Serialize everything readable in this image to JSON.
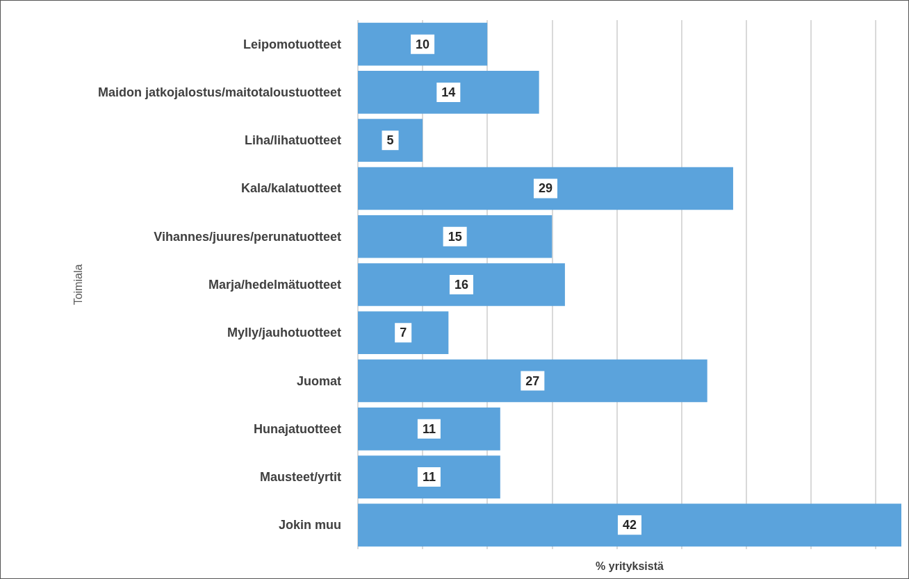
{
  "chart_data": {
    "type": "bar",
    "orientation": "horizontal",
    "xlabel": "% yrityksistä",
    "ylabel": "Toimiala",
    "categories": [
      "Leipomotuotteet",
      "Maidon jatkojalostus/maitotaloustuotteet",
      "Liha/lihatuotteet",
      "Kala/kalatuotteet",
      "Vihannes/juures/perunatuotteet",
      "Marja/hedelmätuotteet",
      "Mylly/jauhotuotteet",
      "Juomat",
      "Hunajatuotteet",
      "Mausteet/yrtit",
      "Jokin muu"
    ],
    "values": [
      10,
      14,
      5,
      29,
      15,
      16,
      7,
      27,
      11,
      11,
      42
    ],
    "color": "#5ba3dc",
    "xlim": [
      0,
      42
    ],
    "xticks": [
      {
        "value": 0,
        "label": null
      },
      {
        "value": 5,
        "label": null
      },
      {
        "value": 10,
        "label": null
      },
      {
        "value": 15,
        "label": null
      },
      {
        "value": 20,
        "label": null
      },
      {
        "value": 25,
        "label": null
      },
      {
        "value": 30,
        "label": null
      },
      {
        "value": 35,
        "label": null
      },
      {
        "value": 40,
        "label": null
      }
    ],
    "grid": "x",
    "tick_labels": "y",
    "data_labels": true
  }
}
